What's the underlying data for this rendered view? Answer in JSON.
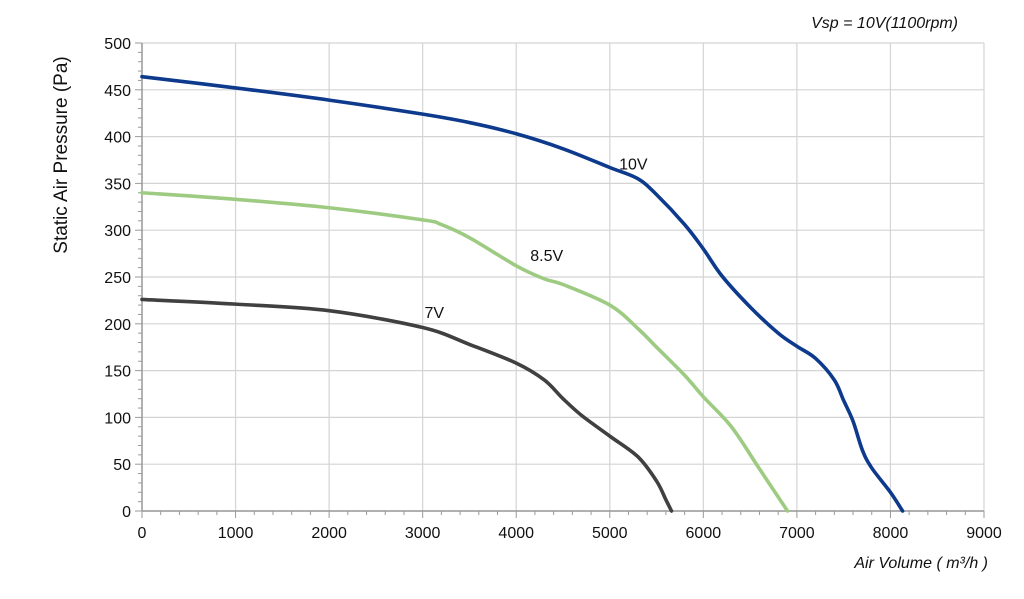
{
  "chart_data": {
    "type": "line",
    "annotation": "Vsp = 10V(1100rpm)",
    "xlabel": "Air Volume ( m³/h )",
    "ylabel": "Static Air Pressure  (Pa)",
    "xlim": [
      0,
      9000
    ],
    "ylim": [
      0,
      500
    ],
    "x_ticks": [
      "0",
      "1000",
      "2000",
      "3000",
      "4000",
      "5000",
      "6000",
      "7000",
      "8000",
      "9000"
    ],
    "y_ticks": [
      "0",
      "50",
      "100",
      "150",
      "200",
      "250",
      "300",
      "350",
      "400",
      "450",
      "500"
    ],
    "grid": true,
    "series": [
      {
        "name": "10V",
        "color": "#0d3a8c",
        "x": [
          0,
          1000,
          2000,
          3000,
          3500,
          4000,
          4500,
          5000,
          5300,
          5500,
          5800,
          6000,
          6200,
          6500,
          6800,
          7000,
          7200,
          7400,
          7500,
          7600,
          7700,
          7800,
          8000,
          8130
        ],
        "y": [
          464,
          452,
          439,
          424,
          415,
          403,
          387,
          367,
          355,
          338,
          306,
          280,
          251,
          218,
          190,
          176,
          163,
          140,
          118,
          96,
          65,
          46,
          20,
          0
        ]
      },
      {
        "name": "8.5V",
        "color": "#9ecb82",
        "x": [
          0,
          1000,
          2000,
          3000,
          3200,
          3500,
          4000,
          4300,
          4500,
          5000,
          5300,
          5500,
          5800,
          6000,
          6300,
          6600,
          6900
        ],
        "y": [
          340,
          333,
          324,
          311,
          306,
          292,
          262,
          248,
          242,
          220,
          195,
          175,
          145,
          122,
          90,
          45,
          0
        ]
      },
      {
        "name": "7V",
        "color": "#404040",
        "x": [
          0,
          1000,
          2000,
          3000,
          3500,
          4000,
          4300,
          4500,
          4700,
          5000,
          5300,
          5500,
          5600,
          5660
        ],
        "y": [
          226,
          221,
          214,
          196,
          178,
          158,
          140,
          120,
          102,
          80,
          58,
          32,
          12,
          0
        ]
      }
    ],
    "series_labels": [
      {
        "text": "10V",
        "x": 5100,
        "y": 365
      },
      {
        "text": "8.5V",
        "x": 4150,
        "y": 267
      },
      {
        "text": "7V",
        "x": 3020,
        "y": 206
      }
    ]
  }
}
